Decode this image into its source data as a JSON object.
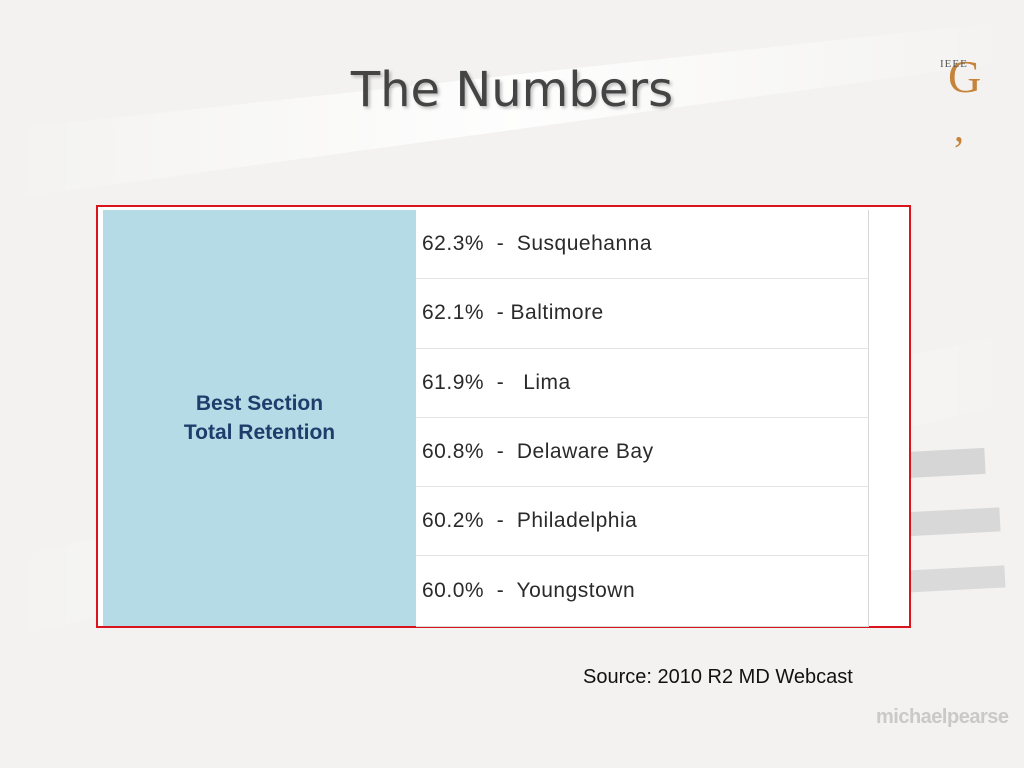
{
  "slide": {
    "title": "The Numbers",
    "logo_text": "IEEE",
    "logo_letter": "G",
    "logo_mark": ",",
    "source": "Source: 2010 R2 MD Webcast",
    "watermark": "michaelpearse"
  },
  "table": {
    "label_line1": "Best Section",
    "label_line2": "Total Retention",
    "rows": [
      "62.3%  -  Susquehanna",
      "62.1%  - Baltimore",
      "61.9%  -   Lima",
      "60.8%  -  Delaware Bay",
      "60.2%  -  Philadelphia",
      "60.0%  -  Youngstown"
    ]
  },
  "colors": {
    "frame_border": "#d9141c",
    "label_cell_bg": "#b5dbe6",
    "label_text": "#1f3d6b",
    "logo_accent": "#c6843a"
  }
}
